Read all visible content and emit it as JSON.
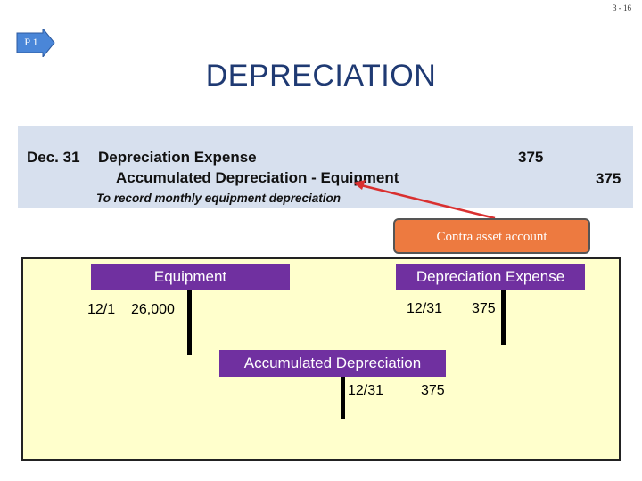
{
  "slide_number": "3 - 16",
  "objective_tag": "P 1",
  "title": "DEPRECIATION",
  "journal_entry": {
    "date": "Dec. 31",
    "debit_account": "Depreciation Expense",
    "credit_account": "Accumulated Depreciation - Equipment",
    "debit_amount": "375",
    "credit_amount": "375",
    "memo": "To record monthly equipment depreciation"
  },
  "callout": "Contra asset account",
  "t_accounts": {
    "equipment": {
      "title": "Equipment",
      "debit_date": "12/1",
      "debit_amount": "26,000"
    },
    "depreciation_expense": {
      "title": "Depreciation Expense",
      "debit_date": "12/31",
      "debit_amount": "375"
    },
    "accumulated_depreciation": {
      "title": "Accumulated Depreciation",
      "credit_date": "12/31",
      "credit_amount": "375"
    }
  },
  "colors": {
    "title": "#1f3a73",
    "entry_background": "#d7e0ee",
    "callout": "#ed7a40",
    "t_header": "#7030a0",
    "panel": "#ffffcc",
    "arrow_tag": "#4a86d8",
    "connector": "#d93030"
  }
}
